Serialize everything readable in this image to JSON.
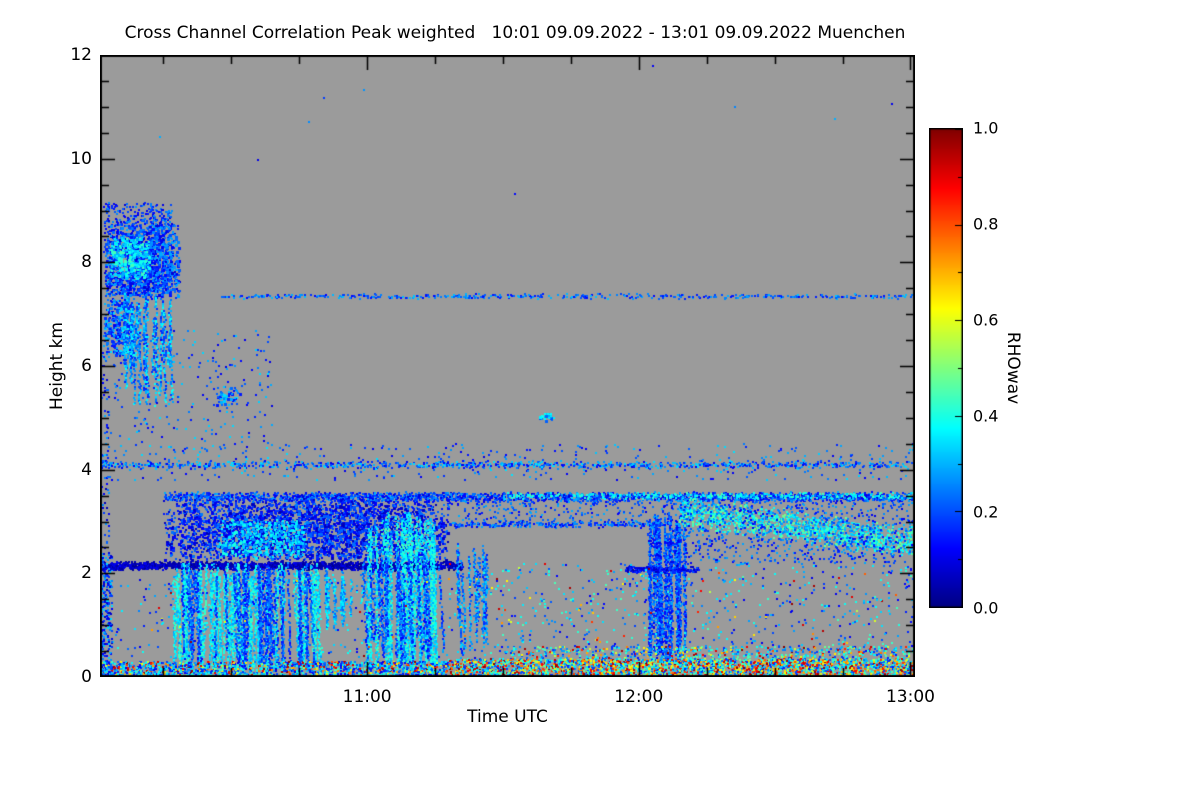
{
  "title": "Cross Channel Correlation Peak weighted   10:01 09.09.2022 - 13:01 09.09.2022 Muenchen",
  "axes": {
    "x": {
      "label": "Time UTC",
      "range": [
        10.0167,
        13.0167
      ],
      "ticks": [
        {
          "label": "11:00",
          "t": 11
        },
        {
          "label": "12:00",
          "t": 12
        },
        {
          "label": "13:00",
          "t": 13
        }
      ]
    },
    "y": {
      "label": "Height km",
      "range": [
        0,
        12
      ],
      "ticks": [
        {
          "label": "0",
          "h": 0
        },
        {
          "label": "2",
          "h": 2
        },
        {
          "label": "4",
          "h": 4
        },
        {
          "label": "6",
          "h": 6
        },
        {
          "label": "8",
          "h": 8
        },
        {
          "label": "10",
          "h": 10
        },
        {
          "label": "12",
          "h": 12
        }
      ]
    }
  },
  "colorbar": {
    "label": "RHOwav",
    "range": [
      0,
      1
    ],
    "ticks": [
      {
        "label": "0.0",
        "v": 0.0
      },
      {
        "label": "0.2",
        "v": 0.2
      },
      {
        "label": "0.4",
        "v": 0.4
      },
      {
        "label": "0.6",
        "v": 0.6
      },
      {
        "label": "0.8",
        "v": 0.8
      },
      {
        "label": "1.0",
        "v": 1.0
      }
    ]
  },
  "chart_data": {
    "type": "heatmap",
    "title": "Cross Channel Correlation Peak weighted",
    "time_range_label": "10:01 09.09.2022 - 13:01 09.09.2022",
    "station": "Muenchen",
    "xlabel": "Time UTC",
    "ylabel": "Height km",
    "value_label": "RHOwav",
    "x_range_hours_utc": [
      10.0167,
      13.0167
    ],
    "y_range_km": [
      0,
      12
    ],
    "value_range": [
      0,
      1
    ],
    "colormap": "jet",
    "background_no_data_color": "#9b9b9b",
    "features": [
      {
        "type": "blob",
        "t": [
          10.03,
          10.31
        ],
        "h": [
          7.3,
          8.75
        ],
        "n": 2400,
        "v": [
          0.08,
          0.3
        ]
      },
      {
        "type": "blob",
        "t": [
          10.05,
          10.2
        ],
        "h": [
          7.7,
          8.5
        ],
        "n": 450,
        "v": [
          0.28,
          0.45
        ]
      },
      {
        "type": "speckle",
        "t": [
          10.03,
          10.28
        ],
        "h": [
          8.7,
          9.15
        ],
        "n": 200,
        "v": [
          0.08,
          0.28
        ]
      },
      {
        "type": "blob",
        "t": [
          10.03,
          10.13
        ],
        "h": [
          6.2,
          7.3
        ],
        "n": 420,
        "v": [
          0.1,
          0.35
        ]
      },
      {
        "type": "streaks",
        "t": [
          10.1,
          10.28
        ],
        "hTop": [
          6.9,
          7.5
        ],
        "hBot": [
          5.2,
          6.2
        ],
        "count": 24,
        "v": [
          0.15,
          0.4
        ]
      },
      {
        "type": "speckle",
        "t": [
          10.03,
          10.65
        ],
        "h": [
          4.3,
          6.7
        ],
        "n": 230,
        "v": [
          0.1,
          0.35
        ]
      },
      {
        "type": "blob",
        "t": [
          10.43,
          10.53
        ],
        "h": [
          5.25,
          5.6
        ],
        "n": 90,
        "v": [
          0.12,
          0.35
        ]
      },
      {
        "type": "speckle",
        "t": [
          10.1,
          13.0
        ],
        "h": [
          9.3,
          11.8
        ],
        "n": 10,
        "v": [
          0.1,
          0.3
        ]
      },
      {
        "type": "hline",
        "t": [
          10.45,
          13.02
        ],
        "h": 7.35,
        "thick": 0.05,
        "n": 430,
        "v": [
          0.12,
          0.32
        ]
      },
      {
        "type": "hline",
        "t": [
          10.02,
          13.02
        ],
        "h": 4.1,
        "thick": 0.08,
        "n": 850,
        "v": [
          0.1,
          0.35
        ]
      },
      {
        "type": "speckle",
        "t": [
          10.02,
          13.02
        ],
        "h": [
          3.8,
          4.5
        ],
        "n": 400,
        "v": [
          0.1,
          0.35
        ]
      },
      {
        "type": "hline",
        "t": [
          10.25,
          13.02
        ],
        "h": 3.48,
        "thick": 0.1,
        "n": 2400,
        "v": [
          0.08,
          0.3
        ]
      },
      {
        "type": "hline",
        "t": [
          11.5,
          13.02
        ],
        "h": 3.5,
        "thick": 0.07,
        "n": 320,
        "v": [
          0.3,
          0.45
        ]
      },
      {
        "type": "hline",
        "t": [
          10.02,
          11.35
        ],
        "h": 2.15,
        "thick": 0.09,
        "n": 2000,
        "v": [
          0.01,
          0.12
        ]
      },
      {
        "type": "blob",
        "t": [
          10.25,
          11.3
        ],
        "h": [
          2.25,
          3.45
        ],
        "n": 5200,
        "v": [
          0.05,
          0.25
        ]
      },
      {
        "type": "blob",
        "t": [
          10.45,
          10.78
        ],
        "h": [
          2.3,
          3.05
        ],
        "n": 650,
        "v": [
          0.25,
          0.42
        ]
      },
      {
        "type": "streaks",
        "t": [
          10.28,
          10.82
        ],
        "hTop": [
          1.9,
          2.2
        ],
        "hBot": [
          0.05,
          0.35
        ],
        "count": 64,
        "v": [
          0.28,
          0.45
        ]
      },
      {
        "type": "streaks",
        "t": [
          10.3,
          10.8
        ],
        "hTop": [
          2.0,
          2.2
        ],
        "hBot": [
          0.1,
          0.5
        ],
        "count": 36,
        "v": [
          0.12,
          0.28
        ]
      },
      {
        "type": "streaks",
        "t": [
          10.84,
          10.98
        ],
        "hTop": [
          1.8,
          2.1
        ],
        "hBot": [
          0.9,
          1.4
        ],
        "count": 12,
        "v": [
          0.22,
          0.4
        ]
      },
      {
        "type": "streaks",
        "t": [
          11.0,
          11.26
        ],
        "hTop": [
          2.6,
          3.2
        ],
        "hBot": [
          0.05,
          0.35
        ],
        "count": 38,
        "v": [
          0.28,
          0.45
        ]
      },
      {
        "type": "streaks",
        "t": [
          10.98,
          11.28
        ],
        "hTop": [
          2.0,
          2.6
        ],
        "hBot": [
          0.2,
          0.8
        ],
        "count": 22,
        "v": [
          0.12,
          0.3
        ]
      },
      {
        "type": "streaks",
        "t": [
          11.3,
          11.46
        ],
        "hTop": [
          2.2,
          2.7
        ],
        "hBot": [
          0.3,
          1.2
        ],
        "count": 10,
        "v": [
          0.15,
          0.35
        ]
      },
      {
        "type": "blob",
        "t": [
          11.63,
          11.69
        ],
        "h": [
          4.93,
          5.1
        ],
        "n": 45,
        "v": [
          0.2,
          0.4
        ]
      },
      {
        "type": "streaks",
        "t": [
          12.03,
          12.17
        ],
        "hTop": [
          2.7,
          3.15
        ],
        "hBot": [
          0.2,
          0.8
        ],
        "count": 28,
        "v": [
          0.1,
          0.3
        ]
      },
      {
        "type": "hline",
        "t": [
          11.95,
          12.22
        ],
        "h": 2.08,
        "thick": 0.07,
        "n": 220,
        "v": [
          0.05,
          0.2
        ]
      },
      {
        "type": "hline",
        "t": [
          11.3,
          12.1
        ],
        "h": 2.95,
        "thick": 0.07,
        "n": 240,
        "v": [
          0.1,
          0.3
        ]
      },
      {
        "type": "speckle",
        "t": [
          11.3,
          12.12
        ],
        "h": [
          2.9,
          3.45
        ],
        "n": 280,
        "v": [
          0.1,
          0.3
        ]
      },
      {
        "type": "diagband",
        "t": [
          12.15,
          13.02
        ],
        "hCenter": [
          3.2,
          2.6
        ],
        "spread": 0.33,
        "n": 1500,
        "v": [
          0.25,
          0.5
        ]
      },
      {
        "type": "speckle",
        "t": [
          12.1,
          13.02
        ],
        "h": [
          2.2,
          3.45
        ],
        "n": 800,
        "v": [
          0.1,
          0.3
        ]
      },
      {
        "type": "speckle",
        "t": [
          11.3,
          13.02
        ],
        "h": [
          0.35,
          2.2
        ],
        "n": 750,
        "v": [
          0.1,
          0.45
        ],
        "hot": 0.1
      },
      {
        "type": "speckle",
        "t": [
          10.05,
          11.3
        ],
        "h": [
          0.35,
          1.9
        ],
        "n": 300,
        "v": [
          0.1,
          0.4
        ],
        "hot": 0.04
      },
      {
        "type": "speckle",
        "t": [
          11.5,
          13.02
        ],
        "h": [
          0.3,
          0.6
        ],
        "n": 650,
        "v": [
          0.15,
          0.5
        ],
        "hot": 0.28
      },
      {
        "type": "speckle",
        "t": [
          10.02,
          11.3
        ],
        "h": [
          0.0,
          0.3
        ],
        "n": 1900,
        "v": [
          0.1,
          0.45
        ],
        "hot": 0.22
      },
      {
        "type": "speckle",
        "t": [
          11.3,
          13.02
        ],
        "h": [
          0.0,
          0.35
        ],
        "n": 3400,
        "v": [
          0.15,
          0.5
        ],
        "hot": 0.42
      },
      {
        "type": "speckle",
        "t": [
          10.02,
          10.06
        ],
        "h": [
          0.0,
          2.4
        ],
        "n": 240,
        "v": [
          0.05,
          0.35
        ]
      },
      {
        "type": "speckle",
        "t": [
          10.02,
          10.05
        ],
        "h": [
          2.4,
          6.8
        ],
        "n": 70,
        "v": [
          0.05,
          0.3
        ]
      }
    ]
  }
}
